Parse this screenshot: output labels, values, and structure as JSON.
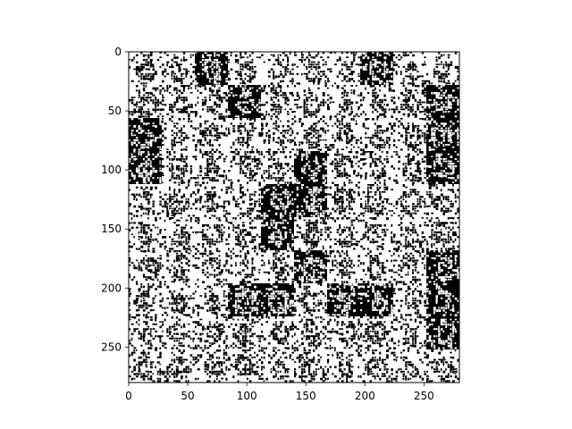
{
  "chart_data": {
    "type": "heatmap",
    "title": "",
    "xlabel": "",
    "ylabel": "",
    "xlim": [
      0,
      280
    ],
    "ylim": [
      280,
      0
    ],
    "x_ticks": [
      0,
      50,
      100,
      150,
      200,
      250
    ],
    "y_ticks": [
      0,
      50,
      100,
      150,
      200,
      250
    ],
    "x_tick_labels": [
      "0",
      "50",
      "100",
      "150",
      "200",
      "250"
    ],
    "y_tick_labels": [
      "0",
      "50",
      "100",
      "150",
      "200",
      "250"
    ],
    "grid": false,
    "tiles_per_row": 10,
    "tiles_per_column": 10,
    "tile_size": 28,
    "colormap": "binary",
    "colors": {
      "background": "#000000",
      "foreground": "#ffffff"
    },
    "content": "10 x 10 grid of noisy binarized handwritten-digit images"
  }
}
